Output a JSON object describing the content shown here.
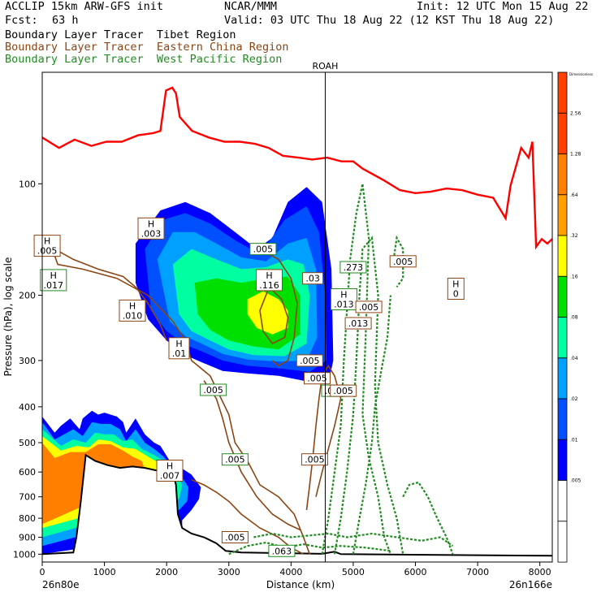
{
  "header": {
    "model": "ACCLIP 15km ARW-GFS init",
    "org": "NCAR/MMM",
    "init": "Init: 12 UTC Mon 15 Aug 22",
    "fcst_label": "Fcst:",
    "fcst_value": "63 h",
    "valid": "Valid: 03 UTC Thu 18 Aug 22 (12 KST Thu 18 Aug 22)"
  },
  "legend": [
    {
      "label": "Boundary Layer Tracer  Tibet Region",
      "color": "#000000"
    },
    {
      "label": "Boundary Layer Tracer  Eastern China Region",
      "color": "#8B4513"
    },
    {
      "label": "Boundary Layer Tracer  West Pacific Region",
      "color": "#228B22"
    }
  ],
  "chart_data": {
    "type": "cross-section",
    "xlabel": "Distance (km)",
    "ylabel": "Pressure (hPa), log scale",
    "x_ticks": [
      "0",
      "1000",
      "2000",
      "3000",
      "4000",
      "5000",
      "6000",
      "7000",
      "8000"
    ],
    "x_tick_values": [
      0,
      1000,
      2000,
      3000,
      4000,
      5000,
      6000,
      7000,
      8000
    ],
    "y_ticks": [
      "100",
      "200",
      "300",
      "400",
      "500",
      "600",
      "700",
      "800",
      "900",
      "1000"
    ],
    "y_tick_values": [
      100,
      200,
      300,
      400,
      500,
      600,
      700,
      800,
      900,
      1000
    ],
    "xlim": [
      0,
      8200
    ],
    "ylim": [
      1050,
      50
    ],
    "y_scale": "log",
    "left_end_label": "26n80e",
    "right_end_label": "26n166e",
    "marker_label": "ROAH",
    "marker_x": 4550,
    "colorbar": {
      "top_label": "Dimensionless",
      "colors": [
        "#FF4000",
        "#FF4000",
        "#FF8000",
        "#FFA000",
        "#FFFF00",
        "#00E000",
        "#00FFA0",
        "#00A0FF",
        "#0050FF",
        "#0000FF",
        "#FFFFFF",
        "#FFFFFF"
      ],
      "labels": [
        ".005",
        ".01",
        ".02",
        ".04",
        ".08",
        ".16",
        ".32",
        ".64",
        "1.28",
        "2.56"
      ]
    },
    "tropopause_line": [
      [
        0,
        75
      ],
      [
        270,
        80
      ],
      [
        520,
        76
      ],
      [
        790,
        79
      ],
      [
        1030,
        77
      ],
      [
        1280,
        77
      ],
      [
        1540,
        74
      ],
      [
        1780,
        73
      ],
      [
        1900,
        72
      ],
      [
        1990,
        56
      ],
      [
        2090,
        55
      ],
      [
        2150,
        57
      ],
      [
        2210,
        66
      ],
      [
        2410,
        72
      ],
      [
        2680,
        75
      ],
      [
        2930,
        77
      ],
      [
        3180,
        77
      ],
      [
        3420,
        78
      ],
      [
        3640,
        80
      ],
      [
        3870,
        84
      ],
      [
        4120,
        85
      ],
      [
        4340,
        86
      ],
      [
        4580,
        85
      ],
      [
        4810,
        87
      ],
      [
        5000,
        87
      ],
      [
        5150,
        91
      ],
      [
        5500,
        98
      ],
      [
        5750,
        104
      ],
      [
        6000,
        106
      ],
      [
        6250,
        105
      ],
      [
        6500,
        103
      ],
      [
        6750,
        104
      ],
      [
        7000,
        107
      ],
      [
        7250,
        109
      ],
      [
        7450,
        124
      ],
      [
        7530,
        101
      ],
      [
        7700,
        80
      ],
      [
        7820,
        85
      ],
      [
        7880,
        77
      ],
      [
        7940,
        148
      ],
      [
        8030,
        141
      ],
      [
        8120,
        145
      ],
      [
        8200,
        141
      ]
    ],
    "h_labels": [
      {
        "x": 1750,
        "p": 132,
        "h": "H",
        "v": ".003"
      },
      {
        "x": 80,
        "p": 147,
        "h": "H",
        "v": ".005"
      },
      {
        "x": 180,
        "p": 182,
        "h": "H",
        "v": ".017"
      },
      {
        "x": 1450,
        "p": 220,
        "h": "H",
        "v": ".010"
      },
      {
        "x": 2200,
        "p": 278,
        "h": "H",
        "v": ".01"
      },
      {
        "x": 3550,
        "p": 150,
        "h": "",
        "v": ".005"
      },
      {
        "x": 3650,
        "p": 182,
        "h": "H",
        "v": ".116"
      },
      {
        "x": 4350,
        "p": 180,
        "h": "",
        "v": ".03"
      },
      {
        "x": 5000,
        "p": 168,
        "h": "",
        "v": ".273"
      },
      {
        "x": 5800,
        "p": 162,
        "h": "",
        "v": ".005"
      },
      {
        "x": 6650,
        "p": 192,
        "h": "H",
        "v": "0"
      },
      {
        "x": 4850,
        "p": 205,
        "h": "H",
        "v": ".013"
      },
      {
        "x": 5250,
        "p": 215,
        "h": "",
        "v": ".005"
      },
      {
        "x": 5080,
        "p": 238,
        "h": "",
        "v": ".013"
      },
      {
        "x": 2750,
        "p": 360,
        "h": "",
        "v": ".005"
      },
      {
        "x": 4300,
        "p": 300,
        "h": "",
        "v": ".005"
      },
      {
        "x": 4420,
        "p": 335,
        "h": "",
        "v": ".005"
      },
      {
        "x": 4700,
        "p": 362,
        "h": "",
        "v": ".005"
      },
      {
        "x": 4840,
        "p": 362,
        "h": "",
        "v": ".005"
      },
      {
        "x": 2050,
        "p": 595,
        "h": "H",
        "v": ".007"
      },
      {
        "x": 3100,
        "p": 555,
        "h": "",
        "v": ".005"
      },
      {
        "x": 4380,
        "p": 555,
        "h": "",
        "v": ".005"
      },
      {
        "x": 3100,
        "p": 900,
        "h": "",
        "v": ".005"
      },
      {
        "x": 3850,
        "p": 980,
        "h": "",
        "v": ".063"
      }
    ]
  }
}
